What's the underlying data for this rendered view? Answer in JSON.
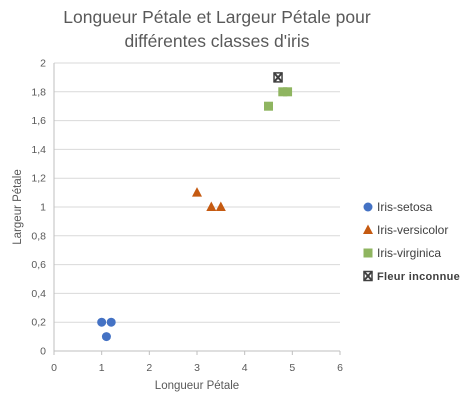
{
  "chart_data": {
    "type": "scatter",
    "title_lines": [
      "Longueur Pétale et Largeur Pétale pour",
      "différentes classes d'iris"
    ],
    "xlabel": "Longueur Pétale",
    "ylabel": "Largeur Pétale",
    "xlim": [
      0,
      6
    ],
    "ylim": [
      0,
      2
    ],
    "x_ticks": [
      "0",
      "1",
      "2",
      "3",
      "4",
      "5",
      "6"
    ],
    "y_ticks": [
      "0",
      "0,2",
      "0,4",
      "0,6",
      "0,8",
      "1",
      "1,2",
      "1,4",
      "1,6",
      "1,8",
      "2"
    ],
    "grid": "horizontal",
    "legend_position": "right",
    "series": [
      {
        "name": "Iris-setosa",
        "marker": "circle",
        "color": "#4472C4",
        "points": [
          [
            1.0,
            0.2
          ],
          [
            1.1,
            0.1
          ],
          [
            1.2,
            0.2
          ]
        ]
      },
      {
        "name": "Iris-versicolor",
        "marker": "triangle",
        "color": "#C55A11",
        "points": [
          [
            3.0,
            1.1
          ],
          [
            3.3,
            1.0
          ],
          [
            3.5,
            1.0
          ]
        ]
      },
      {
        "name": "Iris-virginica",
        "marker": "square",
        "color": "#8FB560",
        "points": [
          [
            4.5,
            1.7
          ],
          [
            4.8,
            1.8
          ],
          [
            4.9,
            1.8
          ]
        ]
      },
      {
        "name": "Fleur inconnue",
        "marker": "x-box",
        "color": "#404040",
        "points": [
          [
            4.7,
            1.9
          ]
        ]
      }
    ]
  }
}
